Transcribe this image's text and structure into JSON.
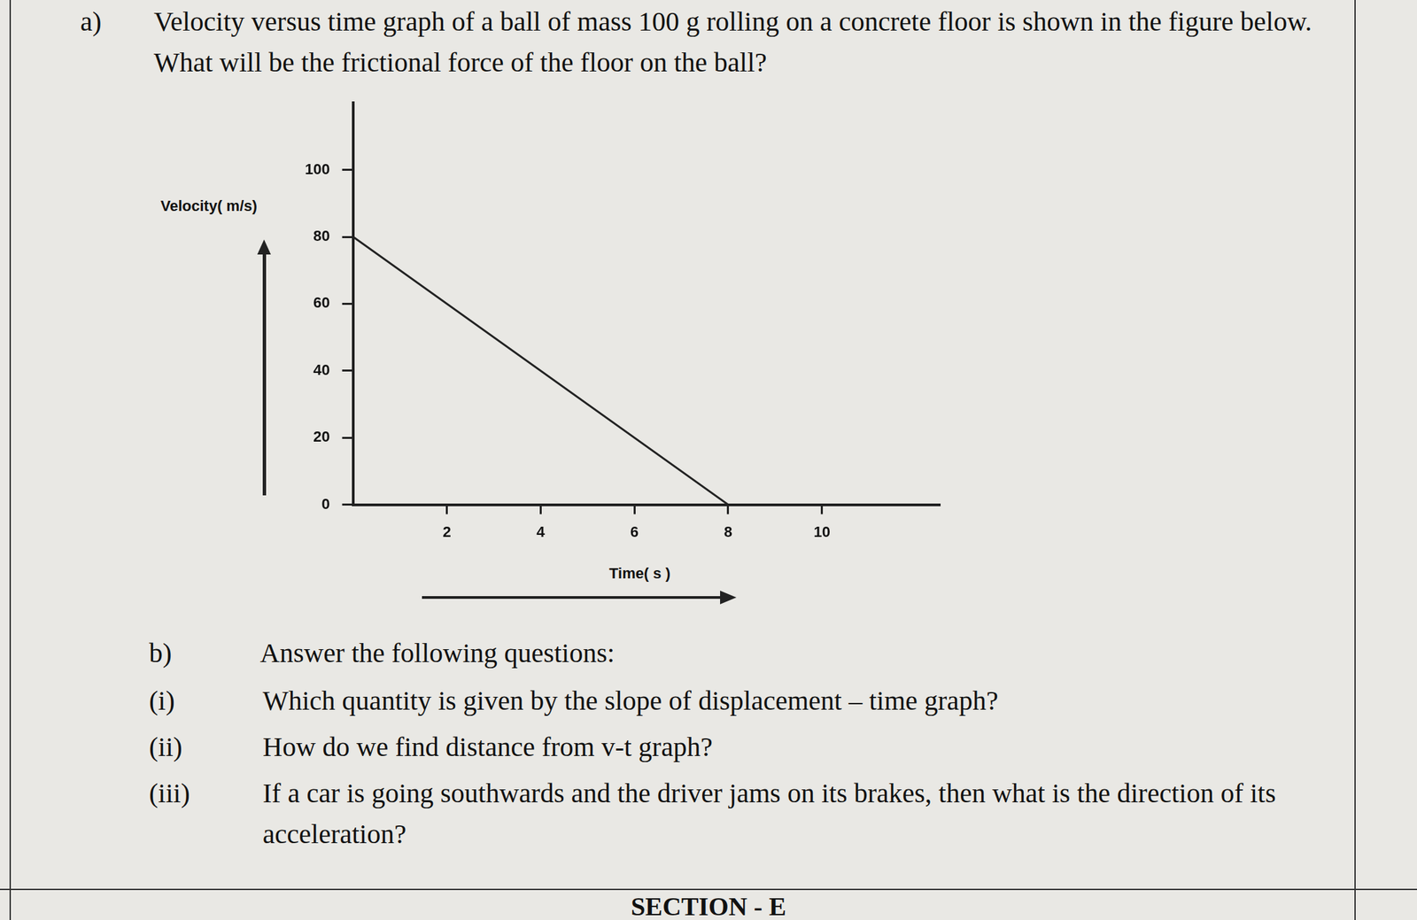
{
  "question_a": {
    "label": "a)",
    "text": "Velocity versus time graph of a ball of mass 100 g rolling on a concrete floor is shown in the figure below. What will be the frictional force of the floor on the ball?"
  },
  "chart_data": {
    "type": "line",
    "x_label": "Time( s )",
    "y_label": "Velocity( m/s)",
    "x": [
      0,
      8
    ],
    "values": [
      80,
      0
    ],
    "color": "#222222",
    "xlim": [
      0,
      12.5
    ],
    "xticks": [
      2,
      4,
      6,
      8,
      10
    ],
    "ylim": [
      0,
      120
    ],
    "yticks": [
      0,
      20,
      40,
      60,
      80,
      100
    ],
    "grid": false
  },
  "question_b": {
    "label": "b)",
    "text": "Answer the following questions:",
    "items": [
      {
        "label": "(i)",
        "text": "Which quantity is given by the slope of displacement – time graph?"
      },
      {
        "label": "(ii)",
        "text": "How do we find distance from v-t graph?"
      },
      {
        "label": "(iii)",
        "text": "If a car is going southwards and the driver jams on its brakes, then what is the direction of its acceleration?"
      }
    ]
  },
  "section": "SECTION - E"
}
